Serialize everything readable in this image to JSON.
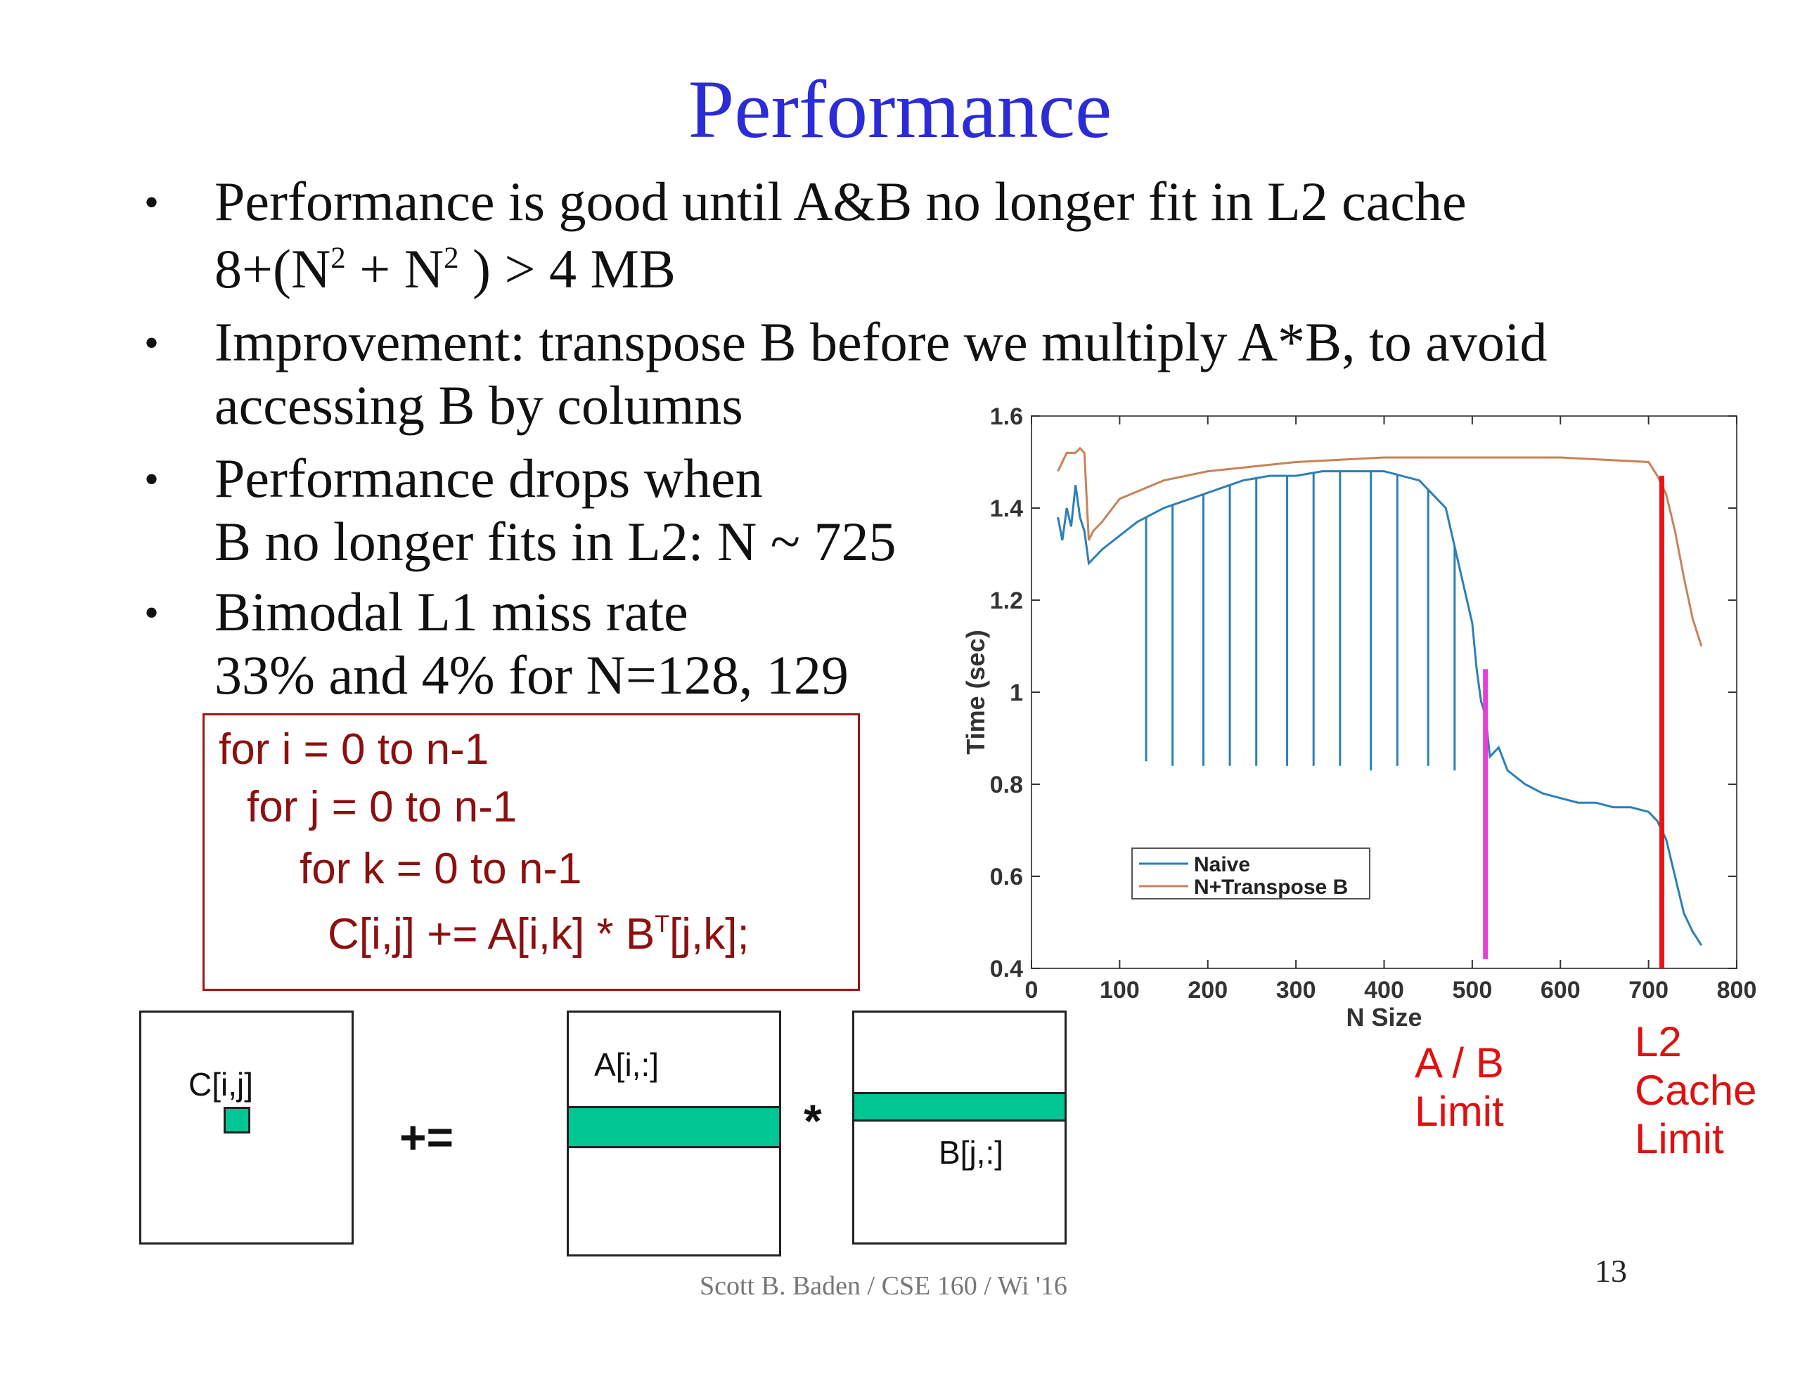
{
  "slide": {
    "title": "Performance",
    "bullets": [
      {
        "line1": "Performance is good until A&B no longer fit in L2 cache",
        "line2": {
          "prefix": "8+(N",
          "exp1": "2",
          "mid": " + N",
          "exp2": "2",
          "suffix": " ) > 4 MB"
        }
      },
      {
        "line1": "Improvement: transpose B before we multiply A*B, to avoid",
        "line2": "accessing B by columns"
      },
      {
        "line1": "Performance drops when",
        "line2": "B no longer fits in L2: N ~ 725"
      },
      {
        "line1": "Bimodal L1 miss rate",
        "line2": "33% and 4% for N=128, 129"
      }
    ],
    "bullet_symbol": "•",
    "code": {
      "line1": "for i = 0 to n-1",
      "line2": "for j = 0 to n-1",
      "line3": "for k = 0 to n-1",
      "line4_prefix": "C[i,j] +=  A[i,k] * B",
      "line4_sup": "T",
      "line4_suffix": "[j,k];"
    },
    "diagram": {
      "c_label": "C[i,j]",
      "op_plus_eq": "+=",
      "a_label": "A[i,:]",
      "op_times": "*",
      "b_label": "B[j,:]",
      "fill_color": "#00c694"
    },
    "annotations": {
      "ab_limit": "A / B\nLimit",
      "l2_limit": "L2\nCache\nLimit",
      "color": "#e01010"
    },
    "footer": "Scott B. Baden / CSE 160 / Wi '16",
    "page_number": "13"
  },
  "chart_data": {
    "type": "line",
    "xlabel": "N Size",
    "ylabel": "Time (sec)",
    "xlim": [
      0,
      800
    ],
    "ylim": [
      0.4,
      1.6
    ],
    "xticks": [
      0,
      100,
      200,
      300,
      400,
      500,
      600,
      700,
      800
    ],
    "yticks": [
      0.4,
      0.6,
      0.8,
      1.0,
      1.2,
      1.4,
      1.6
    ],
    "legend_position": "bottom-left",
    "series": [
      {
        "name": "Naive",
        "color": "#2c7fb8",
        "x": [
          30,
          35,
          40,
          45,
          50,
          55,
          60,
          65,
          70,
          80,
          100,
          120,
          150,
          180,
          210,
          240,
          270,
          300,
          330,
          360,
          400,
          440,
          470,
          500,
          505,
          510,
          515,
          520,
          530,
          540,
          560,
          580,
          600,
          620,
          640,
          660,
          680,
          700,
          710,
          720,
          730,
          740,
          750,
          760
        ],
        "values": [
          1.38,
          1.33,
          1.4,
          1.36,
          1.45,
          1.38,
          1.35,
          1.28,
          1.29,
          1.31,
          1.34,
          1.37,
          1.4,
          1.42,
          1.44,
          1.46,
          1.47,
          1.47,
          1.48,
          1.48,
          1.48,
          1.46,
          1.4,
          1.15,
          1.05,
          0.98,
          0.95,
          0.86,
          0.88,
          0.83,
          0.8,
          0.78,
          0.77,
          0.76,
          0.76,
          0.75,
          0.75,
          0.74,
          0.72,
          0.68,
          0.6,
          0.52,
          0.48,
          0.45
        ]
      },
      {
        "name": "N+Transpose B",
        "color": "#c8825a",
        "x": [
          30,
          40,
          50,
          55,
          60,
          65,
          70,
          80,
          100,
          150,
          200,
          250,
          300,
          400,
          500,
          600,
          700,
          710,
          720,
          730,
          740,
          750,
          760
        ],
        "values": [
          1.48,
          1.52,
          1.52,
          1.53,
          1.52,
          1.33,
          1.35,
          1.37,
          1.42,
          1.46,
          1.48,
          1.49,
          1.5,
          1.51,
          1.51,
          1.51,
          1.5,
          1.47,
          1.43,
          1.35,
          1.25,
          1.16,
          1.1
        ]
      }
    ],
    "naive_spikes": [
      {
        "x": 65,
        "low": 1.28
      },
      {
        "x": 130,
        "low": 0.85
      },
      {
        "x": 160,
        "low": 0.84
      },
      {
        "x": 195,
        "low": 0.84
      },
      {
        "x": 225,
        "low": 0.84
      },
      {
        "x": 255,
        "low": 0.84
      },
      {
        "x": 290,
        "low": 0.84
      },
      {
        "x": 320,
        "low": 0.84
      },
      {
        "x": 350,
        "low": 0.84
      },
      {
        "x": 385,
        "low": 0.83
      },
      {
        "x": 415,
        "low": 0.84
      },
      {
        "x": 450,
        "low": 0.84
      },
      {
        "x": 480,
        "low": 0.83
      }
    ],
    "vertical_markers": [
      {
        "x": 515,
        "y_from": 0.42,
        "y_to": 1.05,
        "color": "#e83ed8"
      },
      {
        "x": 715,
        "y_from": 0.4,
        "y_to": 1.47,
        "color": "#ee1111"
      }
    ]
  }
}
